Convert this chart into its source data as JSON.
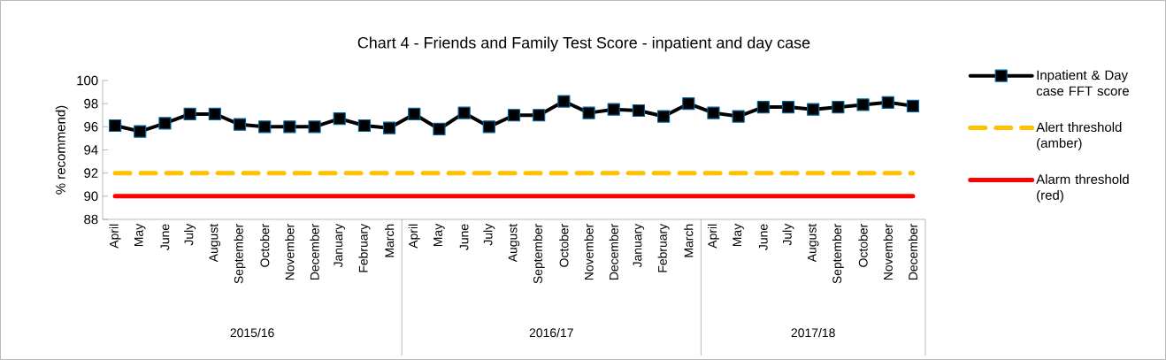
{
  "chart_data": {
    "type": "line",
    "title": "Chart 4 - Friends and Family Test Score - inpatient and day case",
    "ylabel": "% recommend)",
    "categories": [
      "April",
      "May",
      "June",
      "July",
      "August",
      "September",
      "October",
      "November",
      "December",
      "January",
      "February",
      "March",
      "April",
      "May",
      "June",
      "July",
      "August",
      "September",
      "October",
      "November",
      "December",
      "January",
      "February",
      "March",
      "April",
      "May",
      "June",
      "July",
      "August",
      "September",
      "October",
      "November",
      "December"
    ],
    "series": [
      {
        "name": "Inpatient & Day case FFT score",
        "color": "#000000",
        "marker": "square",
        "line_style": "solid",
        "values": [
          96.1,
          95.6,
          96.3,
          97.1,
          97.1,
          96.2,
          96.0,
          96.0,
          96.0,
          96.7,
          96.1,
          95.9,
          97.1,
          95.8,
          97.2,
          96.0,
          97.0,
          97.0,
          98.2,
          97.2,
          97.5,
          97.4,
          96.9,
          98.0,
          97.2,
          96.9,
          97.7,
          97.7,
          97.5,
          97.7,
          97.9,
          98.1,
          97.8
        ]
      },
      {
        "name": "Alert threshold (amber)",
        "color": "#ffc000",
        "marker": "none",
        "line_style": "dashed",
        "values": [
          92,
          92,
          92,
          92,
          92,
          92,
          92,
          92,
          92,
          92,
          92,
          92,
          92,
          92,
          92,
          92,
          92,
          92,
          92,
          92,
          92,
          92,
          92,
          92,
          92,
          92,
          92,
          92,
          92,
          92,
          92,
          92,
          92
        ]
      },
      {
        "name": "Alarm threshold (red)",
        "color": "#ff0000",
        "marker": "none",
        "line_style": "solid",
        "values": [
          90,
          90,
          90,
          90,
          90,
          90,
          90,
          90,
          90,
          90,
          90,
          90,
          90,
          90,
          90,
          90,
          90,
          90,
          90,
          90,
          90,
          90,
          90,
          90,
          90,
          90,
          90,
          90,
          90,
          90,
          90,
          90,
          90
        ]
      }
    ],
    "ylim": [
      88,
      100
    ],
    "yticks": [
      88,
      90,
      92,
      94,
      96,
      98,
      100
    ],
    "legend": "right",
    "annotations": [
      "2015/16",
      "2016/17",
      "2017/18"
    ]
  }
}
